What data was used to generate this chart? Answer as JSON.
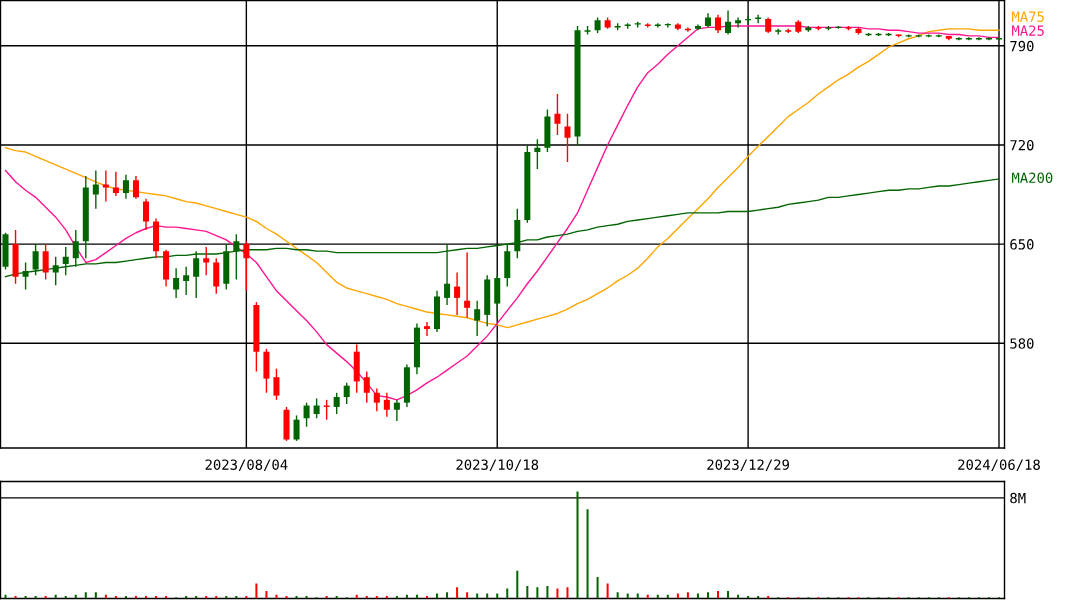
{
  "chart_data": [
    {
      "type": "candlestick",
      "categories": [
        null,
        null,
        null,
        null,
        null,
        null,
        null,
        null,
        null,
        null,
        null,
        null,
        null,
        null,
        null,
        null,
        null,
        null,
        null,
        null,
        null,
        null,
        null,
        null,
        "2023/08/04",
        null,
        null,
        null,
        null,
        null,
        null,
        null,
        null,
        null,
        null,
        null,
        null,
        null,
        null,
        null,
        null,
        null,
        null,
        null,
        null,
        null,
        null,
        null,
        null,
        "2023/10/18",
        null,
        null,
        null,
        null,
        null,
        null,
        null,
        null,
        null,
        null,
        null,
        null,
        null,
        null,
        null,
        null,
        null,
        null,
        null,
        null,
        null,
        null,
        null,
        null,
        "2023/12/29",
        null,
        null,
        null,
        null,
        null,
        null,
        null,
        null,
        null,
        null,
        null,
        null,
        null,
        null,
        null,
        null,
        null,
        null,
        null,
        null,
        null,
        null,
        null,
        null,
        "2024/06/18"
      ],
      "ohlc": [
        [
          634,
          658,
          632,
          657
        ],
        [
          650,
          660,
          622,
          627
        ],
        [
          627,
          637,
          618,
          631
        ],
        [
          632,
          650,
          628,
          645
        ],
        [
          645,
          650,
          625,
          630
        ],
        [
          630,
          641,
          621,
          635
        ],
        [
          636,
          648,
          628,
          641
        ],
        [
          640,
          660,
          634,
          652
        ],
        [
          652,
          698,
          640,
          690
        ],
        [
          685,
          702,
          675,
          692
        ],
        [
          692,
          702,
          680,
          690
        ],
        [
          690,
          701,
          684,
          686
        ],
        [
          686,
          699,
          682,
          695
        ],
        [
          695,
          698,
          682,
          683
        ],
        [
          680,
          682,
          660,
          666
        ],
        [
          666,
          668,
          640,
          645
        ],
        [
          645,
          646,
          620,
          625
        ],
        [
          618,
          633,
          612,
          626
        ],
        [
          624,
          634,
          614,
          628
        ],
        [
          627,
          645,
          612,
          640
        ],
        [
          640,
          648,
          628,
          637
        ],
        [
          637,
          640,
          615,
          620
        ],
        [
          622,
          650,
          618,
          645
        ],
        [
          645,
          657,
          625,
          652
        ],
        [
          650,
          652,
          617,
          640
        ],
        [
          607,
          609,
          560,
          574
        ],
        [
          574,
          576,
          545,
          555
        ],
        [
          556,
          562,
          540,
          543
        ],
        [
          533,
          535,
          511,
          512
        ],
        [
          512,
          529,
          511,
          526
        ],
        [
          527,
          538,
          521,
          536
        ],
        [
          530,
          541,
          527,
          536
        ],
        [
          536,
          540,
          526,
          535
        ],
        [
          535,
          545,
          530,
          542
        ],
        [
          542,
          552,
          537,
          550
        ],
        [
          574,
          579,
          545,
          553
        ],
        [
          556,
          560,
          538,
          545
        ],
        [
          545,
          548,
          532,
          538
        ],
        [
          540,
          545,
          528,
          533
        ],
        [
          533,
          540,
          525,
          538
        ],
        [
          538,
          565,
          535,
          563
        ],
        [
          563,
          594,
          558,
          591
        ],
        [
          592,
          595,
          585,
          590
        ],
        [
          590,
          617,
          588,
          613
        ],
        [
          612,
          650,
          607,
          622
        ],
        [
          620,
          630,
          600,
          612
        ],
        [
          610,
          644,
          598,
          605
        ],
        [
          596,
          610,
          585,
          604
        ],
        [
          600,
          628,
          592,
          625
        ],
        [
          608,
          628,
          598,
          626
        ],
        [
          626,
          650,
          620,
          645
        ],
        [
          645,
          675,
          640,
          667
        ],
        [
          667,
          720,
          665,
          715
        ],
        [
          715,
          724,
          703,
          718
        ],
        [
          718,
          745,
          715,
          740
        ],
        [
          742,
          756,
          727,
          735
        ],
        [
          733,
          742,
          708,
          725
        ],
        [
          726,
          804,
          720,
          801
        ],
        [
          800,
          804,
          798,
          801
        ],
        [
          801,
          810,
          799,
          808
        ],
        [
          808,
          810,
          802,
          803
        ],
        [
          803,
          806,
          801,
          804
        ],
        [
          804,
          806,
          802,
          805
        ],
        [
          805,
          807,
          803,
          806
        ],
        [
          805,
          806,
          803,
          804
        ],
        [
          804,
          806,
          803,
          805
        ],
        [
          805,
          806,
          803,
          805
        ],
        [
          805,
          806,
          801,
          802
        ],
        [
          802,
          803,
          800,
          801
        ],
        [
          802,
          805,
          801,
          804
        ],
        [
          804,
          813,
          803,
          810
        ],
        [
          810,
          812,
          799,
          801
        ],
        [
          799,
          815,
          798,
          807
        ],
        [
          806,
          810,
          803,
          808
        ],
        [
          808,
          811,
          805,
          809
        ],
        [
          809,
          812,
          806,
          810
        ],
        [
          809,
          810,
          799,
          800
        ],
        [
          800,
          802,
          798,
          801
        ],
        [
          801,
          802,
          799,
          800
        ],
        [
          807,
          808,
          799,
          800
        ],
        [
          801,
          804,
          800,
          803
        ],
        [
          803,
          804,
          801,
          802
        ],
        [
          802,
          804,
          801,
          803
        ],
        [
          803,
          804,
          802,
          803
        ],
        [
          803,
          804,
          801,
          802
        ],
        [
          802,
          803,
          798,
          799
        ],
        [
          798,
          799,
          797,
          798
        ],
        [
          798,
          799,
          797,
          798
        ],
        [
          798,
          799,
          797,
          798
        ],
        [
          798,
          798,
          796,
          797
        ],
        [
          797,
          798,
          796,
          797
        ],
        [
          797,
          798,
          796,
          797
        ],
        [
          797,
          798,
          796,
          797
        ],
        [
          797,
          798,
          796,
          797
        ],
        [
          797,
          797,
          794,
          795
        ],
        [
          795,
          796,
          794,
          795
        ],
        [
          795,
          796,
          794,
          795
        ],
        [
          795,
          796,
          794,
          795
        ],
        [
          795,
          796,
          794,
          795
        ],
        [
          795,
          796,
          794,
          795
        ]
      ],
      "colors": [
        "#006400",
        "#ff0000",
        "#006400",
        "#006400",
        "#ff0000",
        "#006400",
        "#006400",
        "#006400",
        "#006400",
        "#006400",
        "#ff0000",
        "#ff0000",
        "#006400",
        "#ff0000",
        "#ff0000",
        "#ff0000",
        "#ff0000",
        "#006400",
        "#006400",
        "#006400",
        "#ff0000",
        "#ff0000",
        "#006400",
        "#006400",
        "#ff0000",
        "#ff0000",
        "#ff0000",
        "#ff0000",
        "#ff0000",
        "#006400",
        "#006400",
        "#006400",
        "#ff0000",
        "#006400",
        "#006400",
        "#ff0000",
        "#ff0000",
        "#ff0000",
        "#ff0000",
        "#006400",
        "#006400",
        "#006400",
        "#ff0000",
        "#006400",
        "#006400",
        "#ff0000",
        "#ff0000",
        "#006400",
        "#006400",
        "#006400",
        "#006400",
        "#006400",
        "#006400",
        "#006400",
        "#006400",
        "#ff0000",
        "#ff0000",
        "#006400",
        "#006400",
        "#006400",
        "#ff0000",
        "#006400",
        "#006400",
        "#006400",
        "#ff0000",
        "#006400",
        "#006400",
        "#ff0000",
        "#ff0000",
        "#006400",
        "#006400",
        "#ff0000",
        "#006400",
        "#006400",
        "#006400",
        "#006400",
        "#ff0000",
        "#006400",
        "#ff0000",
        "#ff0000",
        "#006400",
        "#ff0000",
        "#006400",
        "#006400",
        "#ff0000",
        "#ff0000",
        "#006400",
        "#006400",
        "#006400",
        "#ff0000",
        "#006400",
        "#006400",
        "#006400",
        "#006400",
        "#ff0000",
        "#006400",
        "#006400",
        "#006400",
        "#006400",
        "#006400"
      ],
      "series": [
        {
          "name": "MA75",
          "type": "line",
          "color": "#ffa500",
          "values": [
            718,
            716,
            715,
            712,
            709,
            706,
            703,
            700,
            697,
            694,
            691,
            689,
            688,
            687,
            686,
            685,
            684,
            682,
            680,
            679,
            677,
            675,
            673,
            671,
            669,
            666,
            661,
            657,
            652,
            647,
            642,
            637,
            630,
            623,
            619,
            617,
            615,
            613,
            611,
            608,
            606,
            604,
            602,
            601,
            600,
            599,
            598,
            596,
            594,
            593,
            591,
            593,
            595,
            597,
            599,
            601,
            604,
            608,
            611,
            615,
            619,
            624,
            628,
            633,
            640,
            648,
            654,
            661,
            668,
            675,
            682,
            690,
            697,
            704,
            712,
            719,
            726,
            733,
            740,
            745,
            750,
            756,
            761,
            766,
            770,
            775,
            779,
            784,
            789,
            792,
            795,
            797,
            800,
            801,
            802,
            802,
            802,
            801,
            801,
            801
          ]
        },
        {
          "name": "MA25",
          "type": "line",
          "color": "#ff1493",
          "values": [
            702,
            694,
            688,
            683,
            676,
            669,
            660,
            648,
            637,
            639,
            644,
            649,
            654,
            658,
            661,
            663,
            662,
            662,
            661,
            660,
            659,
            656,
            653,
            648,
            643,
            637,
            627,
            617,
            610,
            603,
            596,
            588,
            579,
            573,
            567,
            560,
            552,
            543,
            542,
            540,
            543,
            547,
            552,
            556,
            561,
            566,
            571,
            578,
            585,
            594,
            603,
            612,
            622,
            631,
            641,
            651,
            661,
            672,
            688,
            704,
            720,
            734,
            748,
            761,
            771,
            777,
            784,
            790,
            796,
            802,
            803,
            803,
            804,
            804,
            804,
            804,
            804,
            804,
            804,
            804,
            803,
            803,
            803,
            803,
            803,
            803,
            802,
            802,
            801,
            801,
            800,
            799,
            799,
            799,
            798,
            798,
            797,
            797,
            796,
            796
          ]
        },
        {
          "name": "MA200",
          "type": "line",
          "color": "#006400",
          "values": [
            627,
            629,
            630,
            631,
            632,
            633,
            634,
            635,
            636,
            636,
            637,
            637,
            638,
            639,
            640,
            641,
            641,
            642,
            642,
            643,
            643,
            643,
            644,
            645,
            646,
            646,
            646,
            647,
            647,
            646,
            646,
            645,
            645,
            644,
            644,
            644,
            644,
            644,
            644,
            644,
            644,
            644,
            644,
            644,
            645,
            646,
            647,
            647,
            648,
            649,
            650,
            651,
            653,
            653,
            655,
            656,
            657,
            659,
            660,
            662,
            663,
            664,
            666,
            667,
            668,
            669,
            670,
            671,
            672,
            672,
            672,
            672,
            673,
            673,
            673,
            674,
            675,
            676,
            678,
            679,
            680,
            681,
            683,
            683,
            684,
            685,
            686,
            687,
            688,
            688,
            689,
            689,
            690,
            691,
            691,
            692,
            693,
            694,
            695,
            696
          ]
        }
      ],
      "ylim": [
        506,
        822
      ],
      "yticks": [
        580,
        650,
        720,
        790
      ],
      "grid": true
    },
    {
      "type": "bar",
      "categories": [
        null,
        null,
        null,
        null,
        null,
        null,
        null,
        null,
        null,
        null,
        null,
        null,
        null,
        null,
        null,
        null,
        null,
        null,
        null,
        null,
        null,
        null,
        null,
        null,
        null,
        null,
        null,
        null,
        null,
        null,
        null,
        null,
        null,
        null,
        null,
        null,
        null,
        null,
        null,
        null,
        null,
        null,
        null,
        null,
        null,
        null,
        null,
        null,
        null,
        null,
        null,
        null,
        null,
        null,
        null,
        null,
        null,
        null,
        null,
        null,
        null,
        null,
        null,
        null,
        null,
        null,
        null,
        null,
        null,
        null,
        null,
        null,
        null,
        null,
        null,
        null,
        null,
        null,
        null,
        null,
        null,
        null,
        null,
        null,
        null,
        null,
        null,
        null,
        null,
        null,
        null,
        null,
        null,
        null,
        null,
        null,
        null,
        null,
        null,
        null
      ],
      "values": [
        0.3,
        0.2,
        0.2,
        0.2,
        0.2,
        0.3,
        0.2,
        0.3,
        0.5,
        0.5,
        0.3,
        0.2,
        0.2,
        0.2,
        0.2,
        0.2,
        0.2,
        0.1,
        0.2,
        0.2,
        0.2,
        0.2,
        0.2,
        0.2,
        0.2,
        1.2,
        0.6,
        0.3,
        0.2,
        0.2,
        0.2,
        0.1,
        0.2,
        0.2,
        0.1,
        0.3,
        0.2,
        0.2,
        0.2,
        0.2,
        0.3,
        0.3,
        0.2,
        0.4,
        0.5,
        0.9,
        0.5,
        0.4,
        0.4,
        0.4,
        0.8,
        2.2,
        1.0,
        0.9,
        1.0,
        0.8,
        0.9,
        8.5,
        7.1,
        1.7,
        1.2,
        0.5,
        0.4,
        0.4,
        0.3,
        0.3,
        0.3,
        0.4,
        0.5,
        0.4,
        0.5,
        0.6,
        0.6,
        0.3,
        0.2,
        0.2,
        0.2,
        0.1,
        0.1,
        0.1,
        0.1,
        0.1,
        0.1,
        0.1,
        0.1,
        0.1,
        0.1,
        0.1,
        0.1,
        0.1,
        0.1,
        0.1,
        0.1,
        0.1,
        0.1,
        0.1,
        0.1,
        0.1,
        0.1,
        0.1
      ],
      "colors": [
        "#006400",
        "#ff0000",
        "#006400",
        "#006400",
        "#ff0000",
        "#006400",
        "#006400",
        "#006400",
        "#006400",
        "#006400",
        "#ff0000",
        "#ff0000",
        "#006400",
        "#ff0000",
        "#ff0000",
        "#ff0000",
        "#ff0000",
        "#006400",
        "#006400",
        "#006400",
        "#ff0000",
        "#ff0000",
        "#006400",
        "#006400",
        "#ff0000",
        "#ff0000",
        "#ff0000",
        "#ff0000",
        "#ff0000",
        "#006400",
        "#006400",
        "#006400",
        "#ff0000",
        "#006400",
        "#006400",
        "#ff0000",
        "#ff0000",
        "#ff0000",
        "#ff0000",
        "#006400",
        "#006400",
        "#006400",
        "#ff0000",
        "#006400",
        "#006400",
        "#ff0000",
        "#ff0000",
        "#006400",
        "#006400",
        "#006400",
        "#006400",
        "#006400",
        "#006400",
        "#006400",
        "#006400",
        "#ff0000",
        "#ff0000",
        "#006400",
        "#006400",
        "#006400",
        "#ff0000",
        "#006400",
        "#006400",
        "#006400",
        "#ff0000",
        "#006400",
        "#006400",
        "#ff0000",
        "#ff0000",
        "#006400",
        "#006400",
        "#ff0000",
        "#006400",
        "#006400",
        "#006400",
        "#006400",
        "#ff0000",
        "#006400",
        "#ff0000",
        "#ff0000",
        "#006400",
        "#ff0000",
        "#006400",
        "#006400",
        "#ff0000",
        "#ff0000",
        "#006400",
        "#006400",
        "#006400",
        "#ff0000",
        "#006400",
        "#006400",
        "#006400",
        "#006400",
        "#ff0000",
        "#006400",
        "#006400",
        "#006400",
        "#006400",
        "#006400"
      ],
      "ylim": [
        0,
        9.3
      ],
      "yticks": [
        {
          "value": 8,
          "label": "8M"
        }
      ],
      "grid": "y",
      "tick_labels": "y"
    }
  ]
}
